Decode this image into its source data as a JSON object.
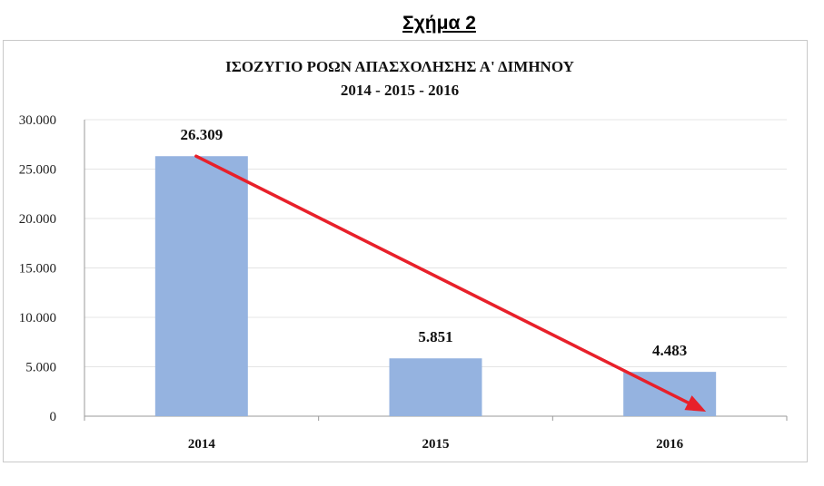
{
  "figure_label": "Σχήμα 2",
  "chart_data": {
    "type": "bar",
    "title": "ΙΣΟΖΥΓΙΟ ΡΟΩΝ ΑΠΑΣΧΟΛΗΣΗΣ Α' ΔΙΜΗΝΟΥ",
    "subtitle": "2014 - 2015 - 2016",
    "categories": [
      "2014",
      "2015",
      "2016"
    ],
    "values": [
      26309,
      5851,
      4483
    ],
    "data_labels": [
      "26.309",
      "5.851",
      "4.483"
    ],
    "y_ticks": [
      "0",
      "5.000",
      "10.000",
      "15.000",
      "20.000",
      "25.000",
      "30.000"
    ],
    "ylim": [
      0,
      30000
    ],
    "grid": true,
    "bar_color": "#95b3e0",
    "trend_arrow": {
      "color": "#e8202a",
      "from": {
        "x": "2014",
        "y": 26309
      },
      "to": {
        "x": "2016",
        "y": 0
      }
    }
  }
}
